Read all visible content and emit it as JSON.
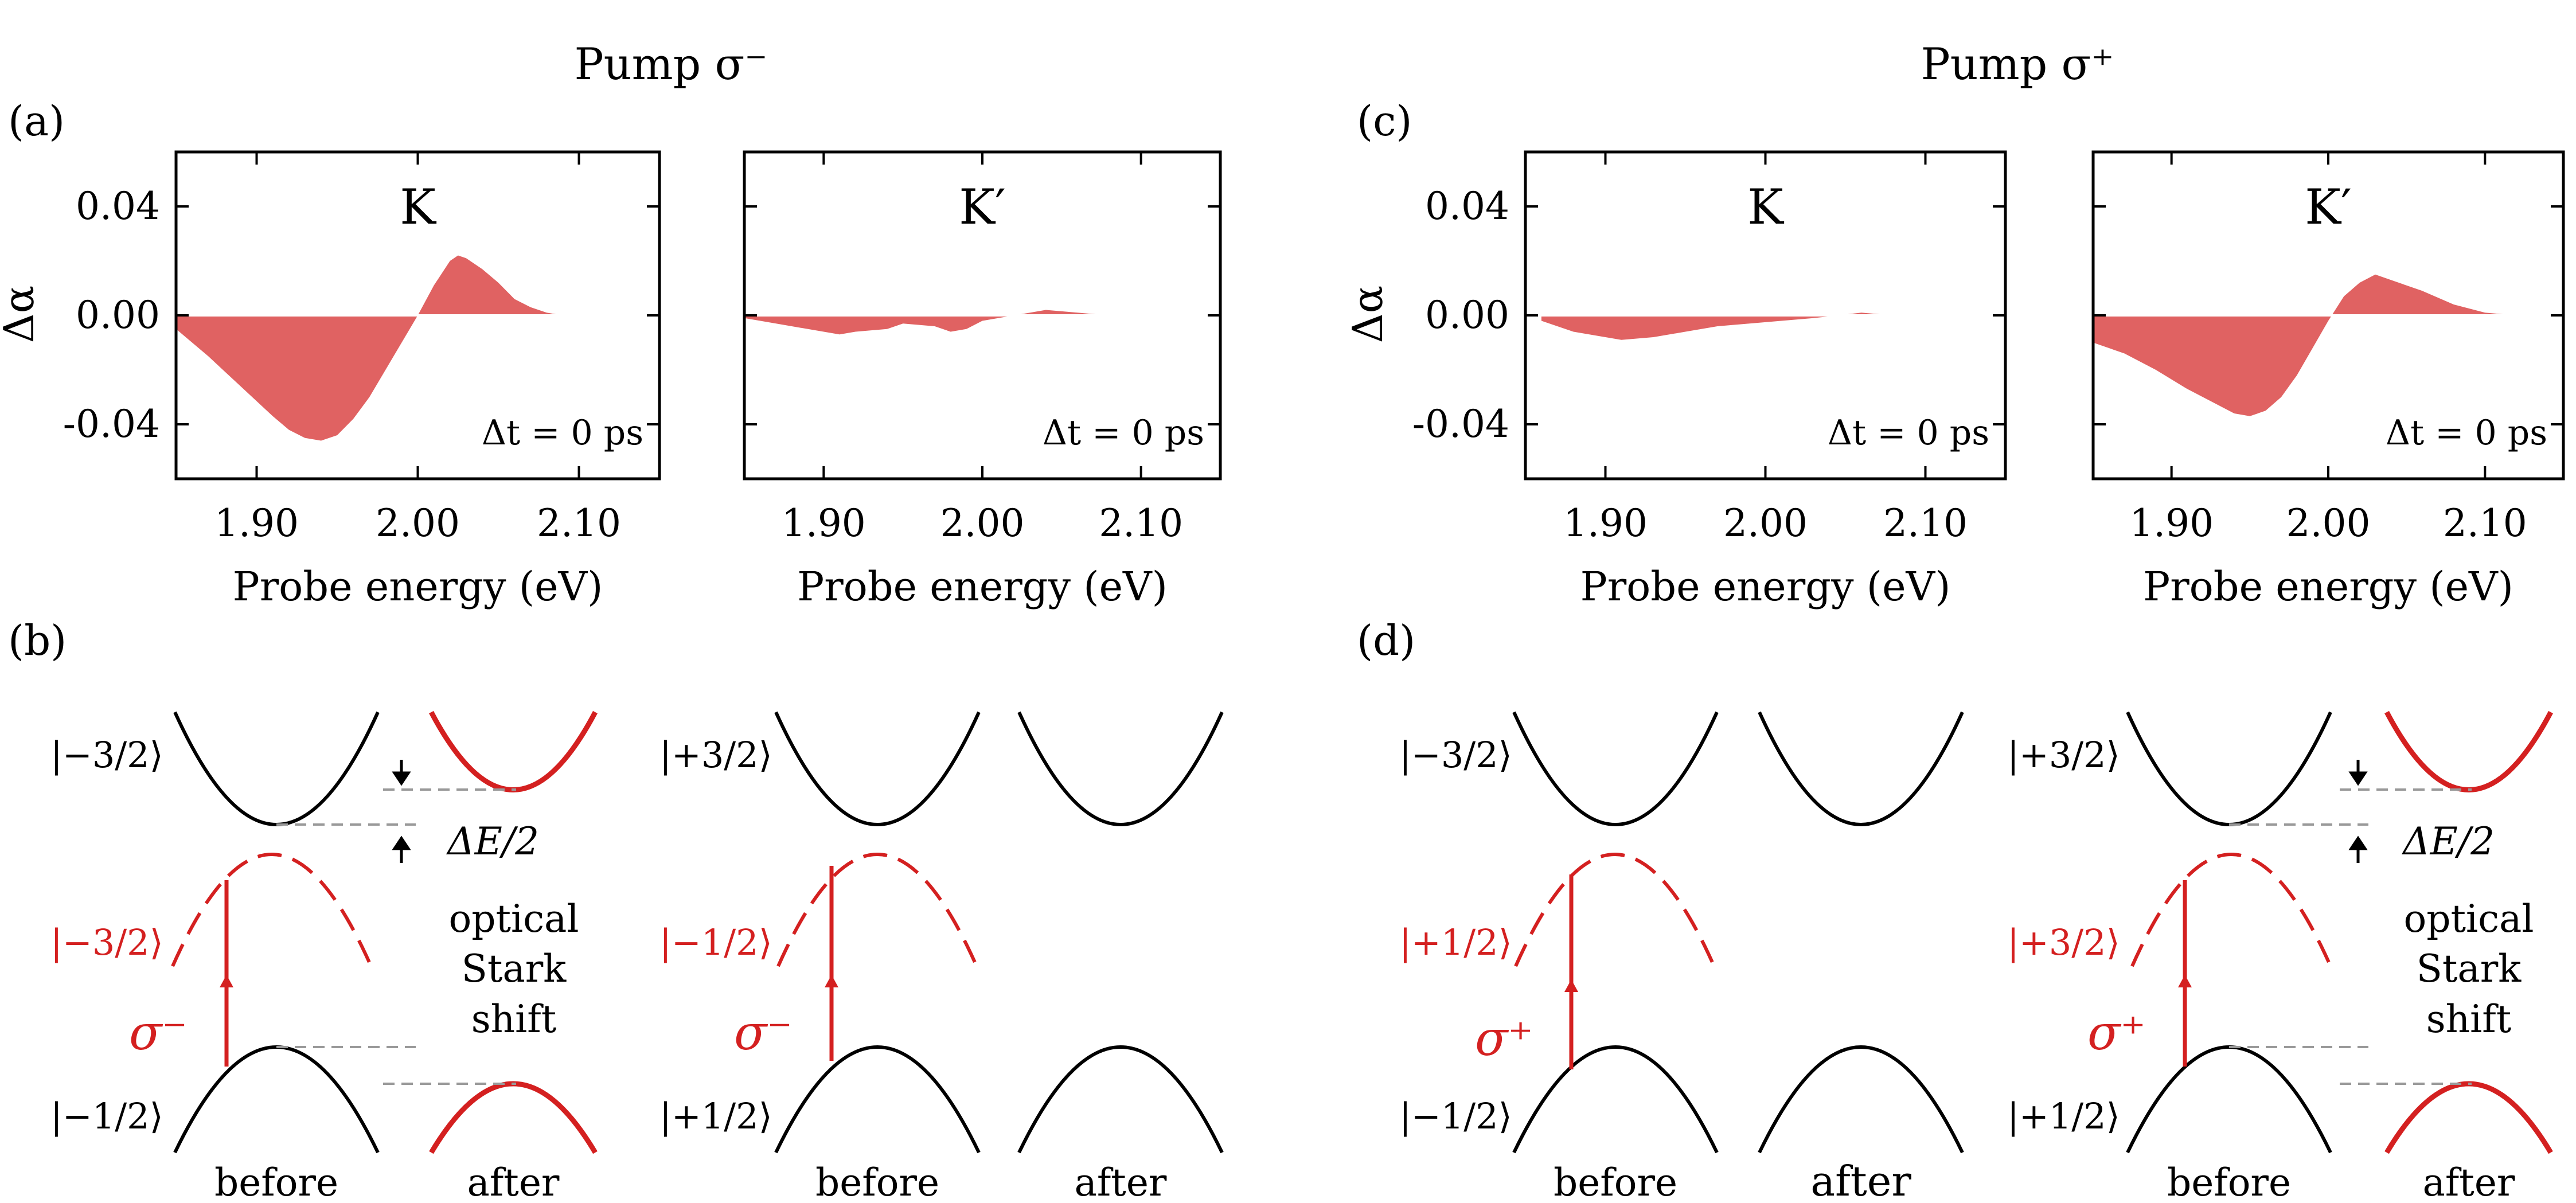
{
  "figure": {
    "headers": [
      "Pump σ⁻",
      "Pump σ⁺"
    ],
    "panel_labels": [
      "(a)",
      "(b)",
      "(c)",
      "(d)"
    ],
    "colors": {
      "fill": "#e06262",
      "red": "#d42020",
      "black": "#000000",
      "dash": "#999999"
    }
  },
  "chart_data": [
    {
      "type": "area",
      "panel": "(a)",
      "title": "K",
      "annotation": "Δt = 0 ps",
      "xlabel": "Probe energy (eV)",
      "ylabel": "Δα",
      "xlim": [
        1.85,
        2.15
      ],
      "ylim": [
        -0.06,
        0.06
      ],
      "xticks": [
        "1.90",
        "2.00",
        "2.10"
      ],
      "yticks": [
        "0.04",
        "0.00",
        "-0.04"
      ],
      "x": [
        1.85,
        1.87,
        1.89,
        1.91,
        1.92,
        1.93,
        1.94,
        1.95,
        1.96,
        1.97,
        1.98,
        1.99,
        2.0,
        2.01,
        2.02,
        2.025,
        2.03,
        2.04,
        2.05,
        2.06,
        2.07,
        2.08,
        2.09,
        2.1,
        2.12,
        2.15
      ],
      "values": [
        -0.005,
        -0.015,
        -0.026,
        -0.037,
        -0.042,
        -0.045,
        -0.046,
        -0.044,
        -0.038,
        -0.03,
        -0.02,
        -0.01,
        0.0,
        0.011,
        0.02,
        0.022,
        0.021,
        0.017,
        0.012,
        0.006,
        0.003,
        0.001,
        0.0,
        0.0,
        0.0,
        0.0
      ]
    },
    {
      "type": "area",
      "panel": "(a)",
      "title": "K′",
      "annotation": "Δt = 0 ps",
      "xlabel": "Probe energy (eV)",
      "ylabel": "",
      "xlim": [
        1.85,
        2.15
      ],
      "ylim": [
        -0.06,
        0.06
      ],
      "xticks": [
        "1.90",
        "2.00",
        "2.10"
      ],
      "yticks": [],
      "x": [
        1.85,
        1.87,
        1.89,
        1.9,
        1.91,
        1.92,
        1.94,
        1.95,
        1.97,
        1.98,
        1.99,
        2.0,
        2.02,
        2.04,
        2.06,
        2.08,
        2.1,
        2.12,
        2.15
      ],
      "values": [
        -0.001,
        -0.003,
        -0.005,
        -0.006,
        -0.007,
        -0.006,
        -0.005,
        -0.003,
        -0.004,
        -0.006,
        -0.005,
        -0.002,
        0.0,
        0.002,
        0.001,
        0.0,
        0.0,
        0.0,
        0.0
      ]
    },
    {
      "type": "area",
      "panel": "(c)",
      "title": "K",
      "annotation": "Δt = 0 ps",
      "xlabel": "Probe energy (eV)",
      "ylabel": "Δα",
      "xlim": [
        1.85,
        2.15
      ],
      "ylim": [
        -0.06,
        0.06
      ],
      "xticks": [
        "1.90",
        "2.00",
        "2.10"
      ],
      "yticks": [
        "0.04",
        "0.00",
        "-0.04"
      ],
      "x": [
        1.86,
        1.88,
        1.9,
        1.91,
        1.93,
        1.95,
        1.97,
        1.99,
        2.01,
        2.03,
        2.06,
        2.08,
        2.1,
        2.13
      ],
      "values": [
        -0.002,
        -0.006,
        -0.008,
        -0.009,
        -0.008,
        -0.006,
        -0.004,
        -0.003,
        -0.002,
        -0.001,
        0.001,
        0.0,
        0.0,
        0.0
      ]
    },
    {
      "type": "area",
      "panel": "(c)",
      "title": "K′",
      "annotation": "Δt = 0 ps",
      "xlabel": "Probe energy (eV)",
      "ylabel": "",
      "xlim": [
        1.85,
        2.15
      ],
      "ylim": [
        -0.06,
        0.06
      ],
      "xticks": [
        "1.90",
        "2.00",
        "2.10"
      ],
      "yticks": [],
      "x": [
        1.85,
        1.87,
        1.89,
        1.91,
        1.93,
        1.94,
        1.95,
        1.96,
        1.97,
        1.98,
        1.99,
        2.0,
        2.01,
        2.02,
        2.03,
        2.04,
        2.06,
        2.08,
        2.1,
        2.12,
        2.15
      ],
      "values": [
        -0.01,
        -0.014,
        -0.02,
        -0.027,
        -0.033,
        -0.036,
        -0.037,
        -0.035,
        -0.03,
        -0.022,
        -0.012,
        -0.002,
        0.007,
        0.012,
        0.015,
        0.013,
        0.009,
        0.004,
        0.001,
        0.0,
        0.0
      ]
    }
  ],
  "diagrams": {
    "b": {
      "left": {
        "top_ket": "|−3/2⟩",
        "middle_ket": "|−3/2⟩",
        "bottom_ket": "|−1/2⟩",
        "sigma": "σ⁻",
        "shifted": true
      },
      "right": {
        "top_ket": "|+3/2⟩",
        "middle_ket": "|−1/2⟩",
        "bottom_ket": "|+1/2⟩",
        "sigma": "σ⁻",
        "shifted": false
      },
      "delta_e": "ΔE/2",
      "stark_lines": [
        "optical",
        "Stark",
        "shift"
      ],
      "before": "before",
      "after": "after"
    },
    "d": {
      "left": {
        "top_ket": "|−3/2⟩",
        "middle_ket": "|+1/2⟩",
        "bottom_ket": "|−1/2⟩",
        "sigma": "σ⁺",
        "shifted": false
      },
      "right": {
        "top_ket": "|+3/2⟩",
        "middle_ket": "|+3/2⟩",
        "bottom_ket": "|+1/2⟩",
        "sigma": "σ⁺",
        "shifted": true
      },
      "delta_e": "ΔE/2",
      "stark_lines": [
        "optical",
        "Stark",
        "shift"
      ],
      "before": "before",
      "after": "after"
    }
  }
}
